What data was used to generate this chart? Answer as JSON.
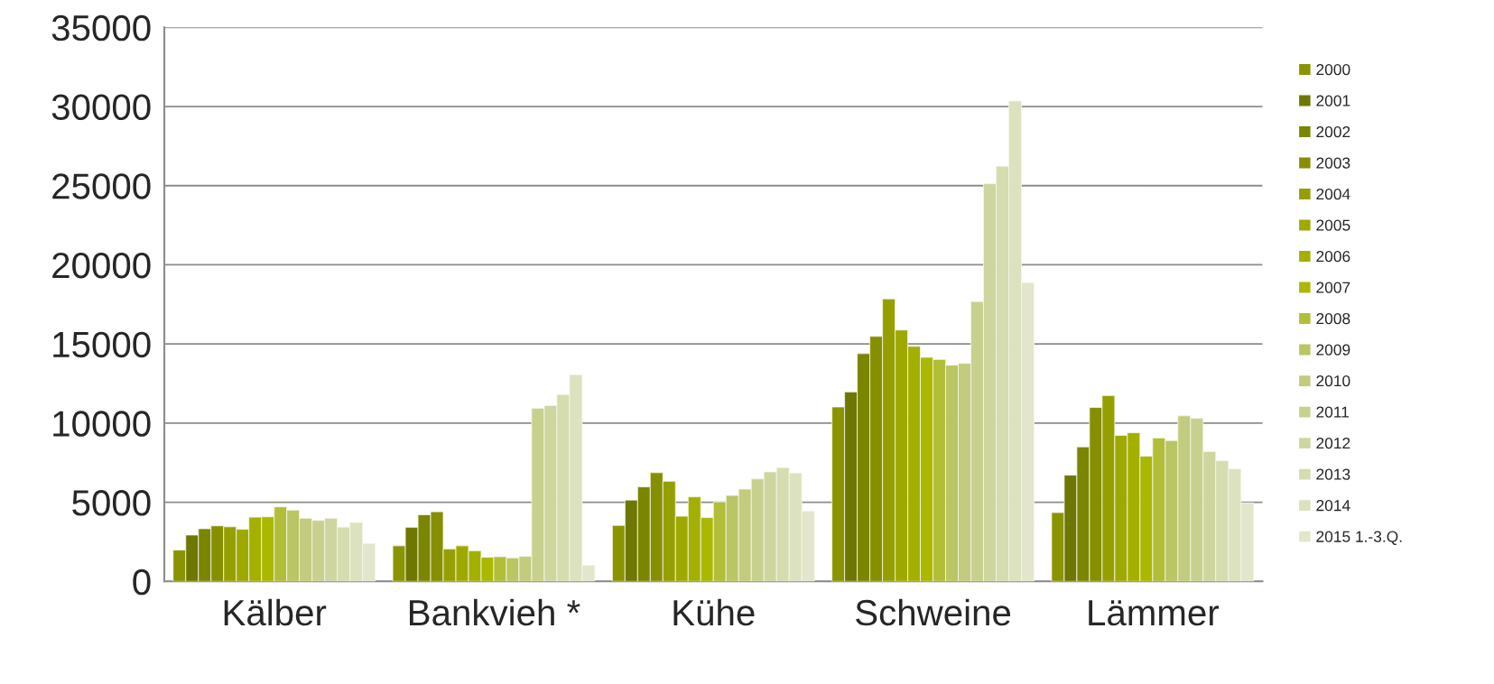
{
  "chart_data": {
    "type": "bar",
    "categories": [
      "Kälber",
      "Bankvieh *",
      "Kühe",
      "Schweine",
      "Lämmer"
    ],
    "series": [
      {
        "name": "2000",
        "color": "#8a9400",
        "values": [
          1980,
          2250,
          3540,
          11020,
          4350
        ]
      },
      {
        "name": "2001",
        "color": "#6e7700",
        "values": [
          2930,
          3420,
          5140,
          11970,
          6710
        ]
      },
      {
        "name": "2002",
        "color": "#7a8500",
        "values": [
          3330,
          4210,
          5970,
          14390,
          8500
        ]
      },
      {
        "name": "2003",
        "color": "#868f00",
        "values": [
          3510,
          4400,
          6870,
          15480,
          10990
        ]
      },
      {
        "name": "2004",
        "color": "#95a000",
        "values": [
          3450,
          2050,
          6330,
          17850,
          11740
        ]
      },
      {
        "name": "2005",
        "color": "#9ea900",
        "values": [
          3290,
          2250,
          4120,
          15880,
          9220
        ]
      },
      {
        "name": "2006",
        "color": "#a3b000",
        "values": [
          4060,
          1940,
          5340,
          14850,
          9390
        ]
      },
      {
        "name": "2007",
        "color": "#aab800",
        "values": [
          4080,
          1530,
          4030,
          14160,
          7910
        ]
      },
      {
        "name": "2008",
        "color": "#b2be38",
        "values": [
          4710,
          1560,
          5020,
          14020,
          9060
        ]
      },
      {
        "name": "2009",
        "color": "#bac563",
        "values": [
          4500,
          1490,
          5430,
          13660,
          8900
        ]
      },
      {
        "name": "2010",
        "color": "#c2cb7e",
        "values": [
          3990,
          1580,
          5830,
          13770,
          10460
        ]
      },
      {
        "name": "2011",
        "color": "#c8d08e",
        "values": [
          3850,
          10930,
          6470,
          17680,
          10300
        ]
      },
      {
        "name": "2012",
        "color": "#cfd59f",
        "values": [
          3990,
          11110,
          6920,
          25120,
          8200
        ]
      },
      {
        "name": "2013",
        "color": "#d5dcb0",
        "values": [
          3430,
          11800,
          7190,
          26230,
          7620
        ]
      },
      {
        "name": "2014",
        "color": "#dce2bf",
        "values": [
          3720,
          13050,
          6850,
          30350,
          7100
        ]
      },
      {
        "name": "2015 1.-3.Q.",
        "color": "#e3e6cc",
        "values": [
          2390,
          1020,
          4440,
          18870,
          4960
        ]
      }
    ],
    "ylim": [
      0,
      35000
    ],
    "yticks": [
      0,
      5000,
      10000,
      15000,
      20000,
      25000,
      30000,
      35000
    ],
    "grid": "y",
    "legend": "right"
  }
}
